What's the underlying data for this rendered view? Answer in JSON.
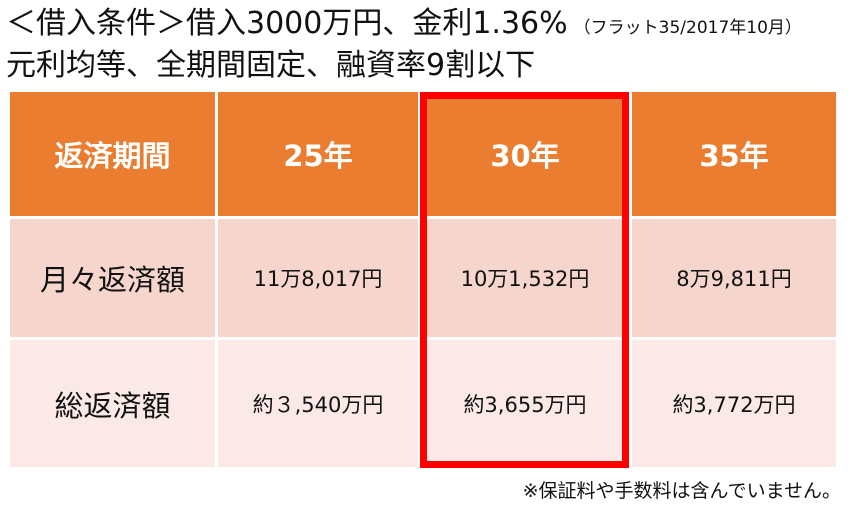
{
  "title": {
    "main": "＜借入条件＞借入3000万円、金利1.36%",
    "note": "（フラット35/2017年10月）",
    "sub": "元利均等、全期間固定、融資率9割以下"
  },
  "table": {
    "header": [
      "返済期間",
      "25年",
      "30年",
      "35年"
    ],
    "rows": [
      {
        "label": "月々返済額",
        "values": [
          "11万8,017円",
          "10万1,532円",
          "8万9,811円"
        ]
      },
      {
        "label": "総返済額",
        "values": [
          "約３,540万円",
          "約3,655万円",
          "約3,772万円"
        ]
      }
    ],
    "highlighted_column": "30年"
  },
  "footnote": "※保証料や手数料は含んでいません。",
  "colors": {
    "header": "#ea7d30",
    "row1": "#f5d5cc",
    "row2": "#fae9e6",
    "highlight": "#ff0000"
  }
}
